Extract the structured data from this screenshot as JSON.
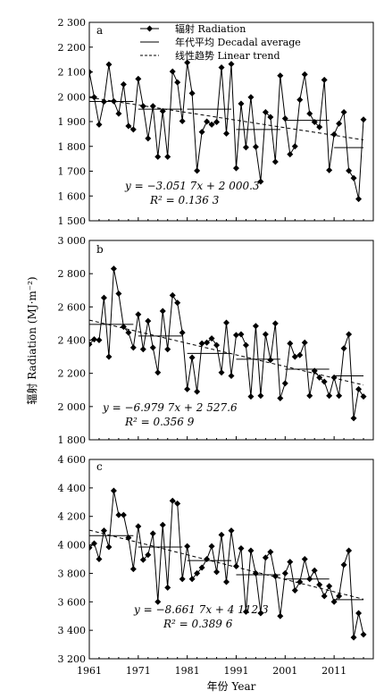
{
  "chart_data": [
    {
      "panel": "a",
      "type": "line",
      "x": [
        1961,
        1962,
        1963,
        1964,
        1965,
        1966,
        1967,
        1968,
        1969,
        1970,
        1971,
        1972,
        1973,
        1974,
        1975,
        1976,
        1977,
        1978,
        1979,
        1980,
        1981,
        1982,
        1983,
        1984,
        1985,
        1986,
        1987,
        1988,
        1989,
        1990,
        1991,
        1992,
        1993,
        1994,
        1995,
        1996,
        1997,
        1998,
        1999,
        2000,
        2001,
        2002,
        2003,
        2004,
        2005,
        2006,
        2007,
        2008,
        2009,
        2010,
        2011,
        2012,
        2013,
        2014,
        2015,
        2016,
        2017
      ],
      "series": [
        {
          "name": "辐射 Radiation",
          "values": [
            2100,
            1998,
            1888,
            1980,
            2130,
            1982,
            1932,
            2050,
            1882,
            1868,
            2072,
            1962,
            1832,
            1962,
            1758,
            1942,
            1758,
            2102,
            2058,
            1902,
            2138,
            2014,
            1702,
            1858,
            1900,
            1888,
            1898,
            2118,
            1852,
            2132,
            1712,
            1972,
            1796,
            1998,
            1798,
            1658,
            1938,
            1918,
            1738,
            2085,
            1912,
            1768,
            1800,
            1988,
            2090,
            1932,
            1898,
            1878,
            2068,
            1704,
            1848,
            1892,
            1938,
            1702,
            1672,
            1588,
            1908
          ]
        },
        {
          "name": "年代平均 Decadal average",
          "segments": [
            {
              "x": [
                1961,
                1970
              ],
              "y": 1981
            },
            {
              "x": [
                1971,
                1980
              ],
              "y": 1950
            },
            {
              "x": [
                1981,
                1990
              ],
              "y": 1950
            },
            {
              "x": [
                1991,
                2000
              ],
              "y": 1868
            },
            {
              "x": [
                2001,
                2010
              ],
              "y": 1905
            },
            {
              "x": [
                2011,
                2017
              ],
              "y": 1795
            }
          ]
        },
        {
          "name": "线性趋势 Linear trend",
          "fit": {
            "slope": -3.0517,
            "intercept": 2000.3
          }
        }
      ],
      "equation": "y = −3.051 7x + 2 000.3",
      "r2_label": "R² = 0.136 3",
      "ylim": [
        1500,
        2300
      ],
      "yticks": [
        "1 500",
        "1 600",
        "1 700",
        "1 800",
        "1 900",
        "2 000",
        "2 100",
        "2 200",
        "2 300"
      ]
    },
    {
      "panel": "b",
      "type": "line",
      "x": [
        1961,
        1962,
        1963,
        1964,
        1965,
        1966,
        1967,
        1968,
        1969,
        1970,
        1971,
        1972,
        1973,
        1974,
        1975,
        1976,
        1977,
        1978,
        1979,
        1980,
        1981,
        1982,
        1983,
        1984,
        1985,
        1986,
        1987,
        1988,
        1989,
        1990,
        1991,
        1992,
        1993,
        1994,
        1995,
        1996,
        1997,
        1998,
        1999,
        2000,
        2001,
        2002,
        2003,
        2004,
        2005,
        2006,
        2007,
        2008,
        2009,
        2010,
        2011,
        2012,
        2013,
        2014,
        2015,
        2016,
        2017
      ],
      "series": [
        {
          "name": "辐射 Radiation",
          "values": [
            2375,
            2405,
            2400,
            2655,
            2300,
            2830,
            2680,
            2480,
            2445,
            2355,
            2555,
            2345,
            2515,
            2355,
            2205,
            2575,
            2345,
            2670,
            2625,
            2445,
            2105,
            2295,
            2090,
            2380,
            2385,
            2410,
            2370,
            2205,
            2505,
            2185,
            2430,
            2435,
            2370,
            2060,
            2485,
            2065,
            2435,
            2280,
            2500,
            2050,
            2140,
            2380,
            2300,
            2310,
            2385,
            2065,
            2215,
            2175,
            2150,
            2065,
            2175,
            2065,
            2350,
            2435,
            1930,
            2105,
            2060
          ]
        },
        {
          "name": "年代平均 Decadal average",
          "segments": [
            {
              "x": [
                1961,
                1970
              ],
              "y": 2495
            },
            {
              "x": [
                1971,
                1980
              ],
              "y": 2425
            },
            {
              "x": [
                1981,
                1990
              ],
              "y": 2320
            },
            {
              "x": [
                1991,
                2000
              ],
              "y": 2285
            },
            {
              "x": [
                2001,
                2010
              ],
              "y": 2225
            },
            {
              "x": [
                2011,
                2017
              ],
              "y": 2185
            }
          ]
        },
        {
          "name": "线性趋势 Linear trend",
          "fit": {
            "slope": -6.9797,
            "intercept": 2527.6
          }
        }
      ],
      "equation": "y = −6.979 7x + 2 527.6",
      "r2_label": "R² = 0.356 9",
      "ylabel": "辐射 Radiation (MJ·m⁻²)",
      "ylim": [
        1800,
        3000
      ],
      "yticks": [
        "1 800",
        "2 000",
        "2 200",
        "2 400",
        "2 600",
        "2 800",
        "3 000"
      ]
    },
    {
      "panel": "c",
      "type": "line",
      "x": [
        1961,
        1962,
        1963,
        1964,
        1965,
        1966,
        1967,
        1968,
        1969,
        1970,
        1971,
        1972,
        1973,
        1974,
        1975,
        1976,
        1977,
        1978,
        1979,
        1980,
        1981,
        1982,
        1983,
        1984,
        1985,
        1986,
        1987,
        1988,
        1989,
        1990,
        1991,
        1992,
        1993,
        1994,
        1995,
        1996,
        1997,
        1998,
        1999,
        2000,
        2001,
        2002,
        2003,
        2004,
        2005,
        2006,
        2007,
        2008,
        2009,
        2010,
        2011,
        2012,
        2013,
        2014,
        2015,
        2016,
        2017
      ],
      "series": [
        {
          "name": "辐射 Radiation",
          "values": [
            3980,
            4010,
            3900,
            4100,
            3985,
            4380,
            4210,
            4210,
            4050,
            3830,
            4130,
            3895,
            3930,
            4080,
            3600,
            4140,
            3700,
            4310,
            4290,
            3760,
            3990,
            3760,
            3800,
            3840,
            3900,
            3990,
            3810,
            4070,
            3740,
            4100,
            3850,
            3975,
            3530,
            3960,
            3800,
            3520,
            3910,
            3950,
            3780,
            3500,
            3800,
            3880,
            3680,
            3740,
            3900,
            3760,
            3820,
            3720,
            3640,
            3710,
            3600,
            3640,
            3860,
            3960,
            3350,
            3520,
            3370
          ]
        },
        {
          "name": "年代平均 Decadal average",
          "segments": [
            {
              "x": [
                1961,
                1970
              ],
              "y": 4065
            },
            {
              "x": [
                1971,
                1980
              ],
              "y": 3985
            },
            {
              "x": [
                1981,
                1990
              ],
              "y": 3890
            },
            {
              "x": [
                1991,
                2000
              ],
              "y": 3790
            },
            {
              "x": [
                2001,
                2010
              ],
              "y": 3760
            },
            {
              "x": [
                2011,
                2017
              ],
              "y": 3615
            }
          ]
        },
        {
          "name": "线性趋势 Linear trend",
          "fit": {
            "slope": -8.6617,
            "intercept": 4112.3
          }
        }
      ],
      "equation": "y = −8.661 7x + 4 112.3",
      "r2_label": "R² = 0.389 6",
      "ylim": [
        3200,
        4600
      ],
      "yticks": [
        "3 200",
        "3 400",
        "3 600",
        "3 800",
        "4 000",
        "4 200",
        "4 400",
        "4 600"
      ]
    }
  ],
  "legend": [
    "辐射 Radiation",
    "年代平均 Decadal average",
    "线性趋势 Linear trend"
  ],
  "xticks": [
    "1961",
    "1971",
    "1981",
    "1991",
    "2001",
    "2011"
  ],
  "xlabel": "年份 Year"
}
